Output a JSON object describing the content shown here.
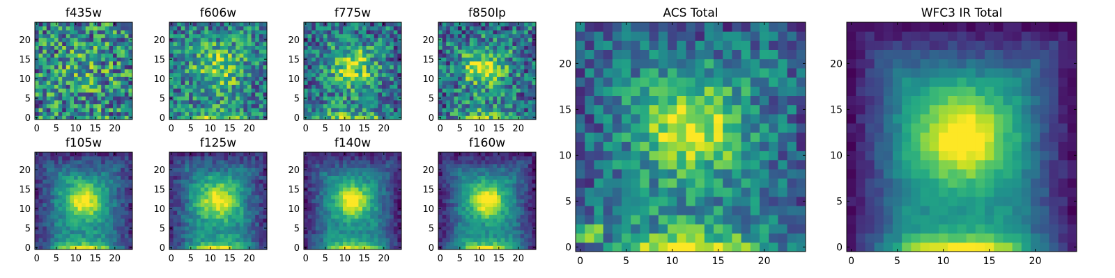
{
  "colors": {
    "background": "#ffffff",
    "colormap": "viridis",
    "frame": "#000000"
  },
  "chart_data": [
    {
      "type": "heatmap",
      "title": "f435w",
      "grid_size": 25,
      "xlim": [
        0,
        24
      ],
      "ylim": [
        0,
        24
      ],
      "xticks": [
        0,
        5,
        10,
        15,
        20
      ],
      "yticks": [
        0,
        5,
        10,
        15,
        20
      ],
      "x_tick_labels": [
        "0",
        "5",
        "10",
        "15",
        "20"
      ],
      "y_tick_labels": [
        "0",
        "5",
        "10",
        "15",
        "20"
      ],
      "source_profile": {
        "center": [
          12,
          12
        ],
        "peak": 0.15,
        "sigma": 5,
        "noise": 0.38,
        "bottom_glow": 0.1,
        "edge_dim": 0.0
      },
      "grid": false
    },
    {
      "type": "heatmap",
      "title": "f606w",
      "grid_size": 25,
      "xlim": [
        0,
        24
      ],
      "ylim": [
        0,
        24
      ],
      "xticks": [
        0,
        5,
        10,
        15,
        20
      ],
      "yticks": [
        0,
        5,
        10,
        15,
        20
      ],
      "x_tick_labels": [
        "0",
        "5",
        "10",
        "15",
        "20"
      ],
      "y_tick_labels": [
        "0",
        "5",
        "10",
        "15",
        "20"
      ],
      "source_profile": {
        "center": [
          12,
          13
        ],
        "peak": 0.35,
        "sigma": 4.5,
        "noise": 0.3,
        "bottom_glow": 0.35,
        "edge_dim": 0.05
      },
      "grid": false
    },
    {
      "type": "heatmap",
      "title": "f775w",
      "grid_size": 25,
      "xlim": [
        0,
        24
      ],
      "ylim": [
        0,
        24
      ],
      "xticks": [
        0,
        5,
        10,
        15,
        20
      ],
      "yticks": [
        0,
        5,
        10,
        15,
        20
      ],
      "x_tick_labels": [
        "0",
        "5",
        "10",
        "15",
        "20"
      ],
      "y_tick_labels": [
        "0",
        "5",
        "10",
        "15",
        "20"
      ],
      "source_profile": {
        "center": [
          12,
          13
        ],
        "peak": 0.45,
        "sigma": 3.5,
        "noise": 0.3,
        "bottom_glow": 0.4,
        "edge_dim": 0.1
      },
      "grid": false
    },
    {
      "type": "heatmap",
      "title": "f850lp",
      "grid_size": 25,
      "xlim": [
        0,
        24
      ],
      "ylim": [
        0,
        24
      ],
      "xticks": [
        0,
        5,
        10,
        15,
        20
      ],
      "yticks": [
        0,
        5,
        10,
        15,
        20
      ],
      "x_tick_labels": [
        "0",
        "5",
        "10",
        "15",
        "20"
      ],
      "y_tick_labels": [
        "0",
        "5",
        "10",
        "15",
        "20"
      ],
      "source_profile": {
        "center": [
          11,
          13
        ],
        "peak": 0.45,
        "sigma": 3.5,
        "noise": 0.32,
        "bottom_glow": 0.35,
        "edge_dim": 0.1
      },
      "grid": false
    },
    {
      "type": "heatmap",
      "title": "f105w",
      "grid_size": 25,
      "xlim": [
        0,
        24
      ],
      "ylim": [
        0,
        24
      ],
      "xticks": [
        0,
        5,
        10,
        15,
        20
      ],
      "yticks": [
        0,
        5,
        10,
        15,
        20
      ],
      "x_tick_labels": [
        "0",
        "5",
        "10",
        "15",
        "20"
      ],
      "y_tick_labels": [
        "0",
        "5",
        "10",
        "15",
        "20"
      ],
      "source_profile": {
        "center": [
          12,
          12
        ],
        "peak": 0.6,
        "sigma": 3.2,
        "noise": 0.12,
        "bottom_glow": 0.5,
        "edge_dim": 0.3
      },
      "grid": false
    },
    {
      "type": "heatmap",
      "title": "f125w",
      "grid_size": 25,
      "xlim": [
        0,
        24
      ],
      "ylim": [
        0,
        24
      ],
      "xticks": [
        0,
        5,
        10,
        15,
        20
      ],
      "yticks": [
        0,
        5,
        10,
        15,
        20
      ],
      "x_tick_labels": [
        "0",
        "5",
        "10",
        "15",
        "20"
      ],
      "y_tick_labels": [
        "0",
        "5",
        "10",
        "15",
        "20"
      ],
      "source_profile": {
        "center": [
          12,
          12
        ],
        "peak": 0.55,
        "sigma": 3.5,
        "noise": 0.12,
        "bottom_glow": 0.5,
        "edge_dim": 0.3
      },
      "grid": false
    },
    {
      "type": "heatmap",
      "title": "f140w",
      "grid_size": 25,
      "xlim": [
        0,
        24
      ],
      "ylim": [
        0,
        24
      ],
      "xticks": [
        0,
        5,
        10,
        15,
        20
      ],
      "yticks": [
        0,
        5,
        10,
        15,
        20
      ],
      "x_tick_labels": [
        "0",
        "5",
        "10",
        "15",
        "20"
      ],
      "y_tick_labels": [
        "0",
        "5",
        "10",
        "15",
        "20"
      ],
      "source_profile": {
        "center": [
          12,
          12
        ],
        "peak": 0.6,
        "sigma": 3.0,
        "noise": 0.1,
        "bottom_glow": 0.5,
        "edge_dim": 0.35
      },
      "grid": false
    },
    {
      "type": "heatmap",
      "title": "f160w",
      "grid_size": 25,
      "xlim": [
        0,
        24
      ],
      "ylim": [
        0,
        24
      ],
      "xticks": [
        0,
        5,
        10,
        15,
        20
      ],
      "yticks": [
        0,
        5,
        10,
        15,
        20
      ],
      "x_tick_labels": [
        "0",
        "5",
        "10",
        "15",
        "20"
      ],
      "y_tick_labels": [
        "0",
        "5",
        "10",
        "15",
        "20"
      ],
      "source_profile": {
        "center": [
          12,
          12
        ],
        "peak": 0.65,
        "sigma": 3.0,
        "noise": 0.1,
        "bottom_glow": 0.5,
        "edge_dim": 0.35
      },
      "grid": false
    },
    {
      "type": "heatmap",
      "title": "ACS Total",
      "grid_size": 25,
      "xlim": [
        0,
        24
      ],
      "ylim": [
        0,
        24
      ],
      "xticks": [
        0,
        5,
        10,
        15,
        20
      ],
      "yticks": [
        0,
        5,
        10,
        15,
        20
      ],
      "x_tick_labels": [
        "0",
        "5",
        "10",
        "15",
        "20"
      ],
      "y_tick_labels": [
        "0",
        "5",
        "10",
        "15",
        "20"
      ],
      "source_profile": {
        "center": [
          12,
          13
        ],
        "peak": 0.55,
        "sigma": 3.5,
        "noise": 0.22,
        "bottom_glow": 0.55,
        "edge_dim": 0.15
      },
      "grid": false
    },
    {
      "type": "heatmap",
      "title": "WFC3 IR Total",
      "grid_size": 25,
      "xlim": [
        0,
        24
      ],
      "ylim": [
        0,
        24
      ],
      "xticks": [
        0,
        5,
        10,
        15,
        20
      ],
      "yticks": [
        0,
        5,
        10,
        15,
        20
      ],
      "x_tick_labels": [
        "0",
        "5",
        "10",
        "15",
        "20"
      ],
      "y_tick_labels": [
        "0",
        "5",
        "10",
        "15",
        "20"
      ],
      "source_profile": {
        "center": [
          12,
          12
        ],
        "peak": 0.65,
        "sigma": 3.5,
        "noise": 0.06,
        "bottom_glow": 0.6,
        "edge_dim": 0.4
      },
      "grid": false
    }
  ]
}
